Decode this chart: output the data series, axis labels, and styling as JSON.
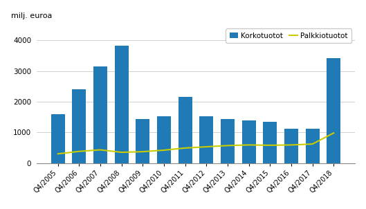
{
  "categories": [
    "Q4/2005",
    "Q4/2006",
    "Q4/2007",
    "Q4/2008",
    "Q4/2009",
    "Q4/2010",
    "Q4/2011",
    "Q4/2012",
    "Q4/2013",
    "Q4/2014",
    "Q4/2015",
    "Q4/2016",
    "Q4/2017",
    "Q4/2018"
  ],
  "korkotuotot": [
    1600,
    2400,
    3150,
    3820,
    1440,
    1520,
    2150,
    1530,
    1440,
    1390,
    1350,
    1120,
    1110,
    3420
  ],
  "palkkiotuotot": [
    300,
    380,
    430,
    350,
    370,
    420,
    490,
    530,
    570,
    590,
    580,
    590,
    620,
    980
  ],
  "bar_color": "#1f7ab5",
  "line_color": "#c8cc00",
  "ylabel": "milj. euroa",
  "ylim": [
    0,
    4500
  ],
  "yticks": [
    0,
    1000,
    2000,
    3000,
    4000
  ],
  "legend_korko": "Korkotuotot",
  "legend_palkkio": "Palkkiotuotot",
  "background_color": "#ffffff",
  "grid_color": "#d0d0d0"
}
